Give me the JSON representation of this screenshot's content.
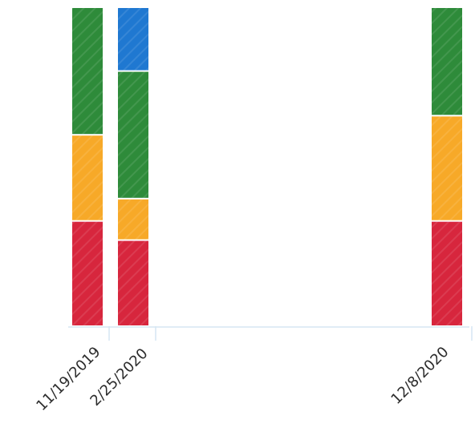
{
  "chart_data": {
    "type": "bar",
    "stacked": true,
    "categories": [
      "11/19/2019",
      "2/25/2020",
      "12/8/2020"
    ],
    "series": [
      {
        "color": "#d7263d",
        "values": [
          33,
          27,
          33
        ]
      },
      {
        "color": "#f7a928",
        "values": [
          27,
          13,
          33
        ]
      },
      {
        "color": "#2e8b3a",
        "values": [
          40,
          40,
          34
        ]
      },
      {
        "color": "#1f78d1",
        "values": [
          0,
          20,
          0
        ]
      }
    ],
    "ylim": [
      0,
      100
    ],
    "grid": false,
    "legend": "none",
    "axis_color": "#d6e6f2",
    "pattern": "diagonal-stripes"
  }
}
